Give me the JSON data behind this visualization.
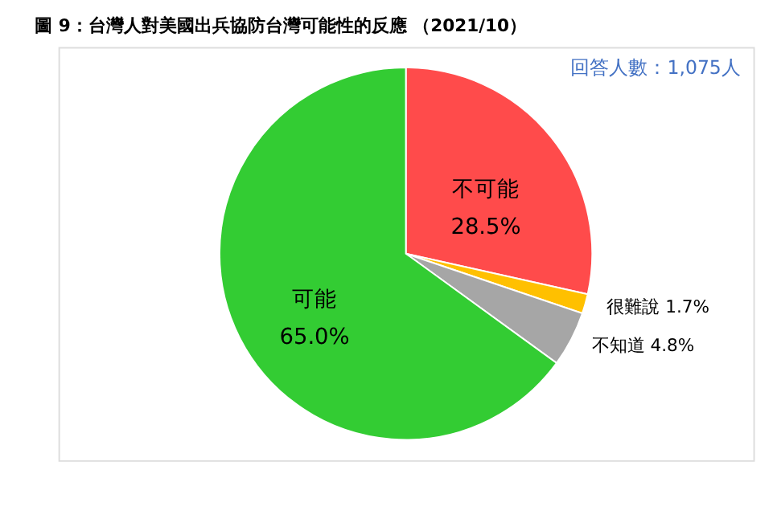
{
  "chart_data": {
    "type": "pie",
    "title": "圖 9：台灣人對美國出兵協防台灣可能性的反應 （2021/10）",
    "categories": [
      "不可能",
      "很難說",
      "不知道",
      "可能"
    ],
    "values": [
      28.5,
      1.7,
      4.8,
      65.0
    ],
    "value_labels": [
      "28.5%",
      "1.7%",
      "4.8%",
      "65.0%"
    ],
    "colors": [
      "#ff4b4b",
      "#ffc000",
      "#a6a6a6",
      "#33cc33"
    ],
    "annotations": [
      "回答人數：1,075人"
    ],
    "legend": false
  }
}
